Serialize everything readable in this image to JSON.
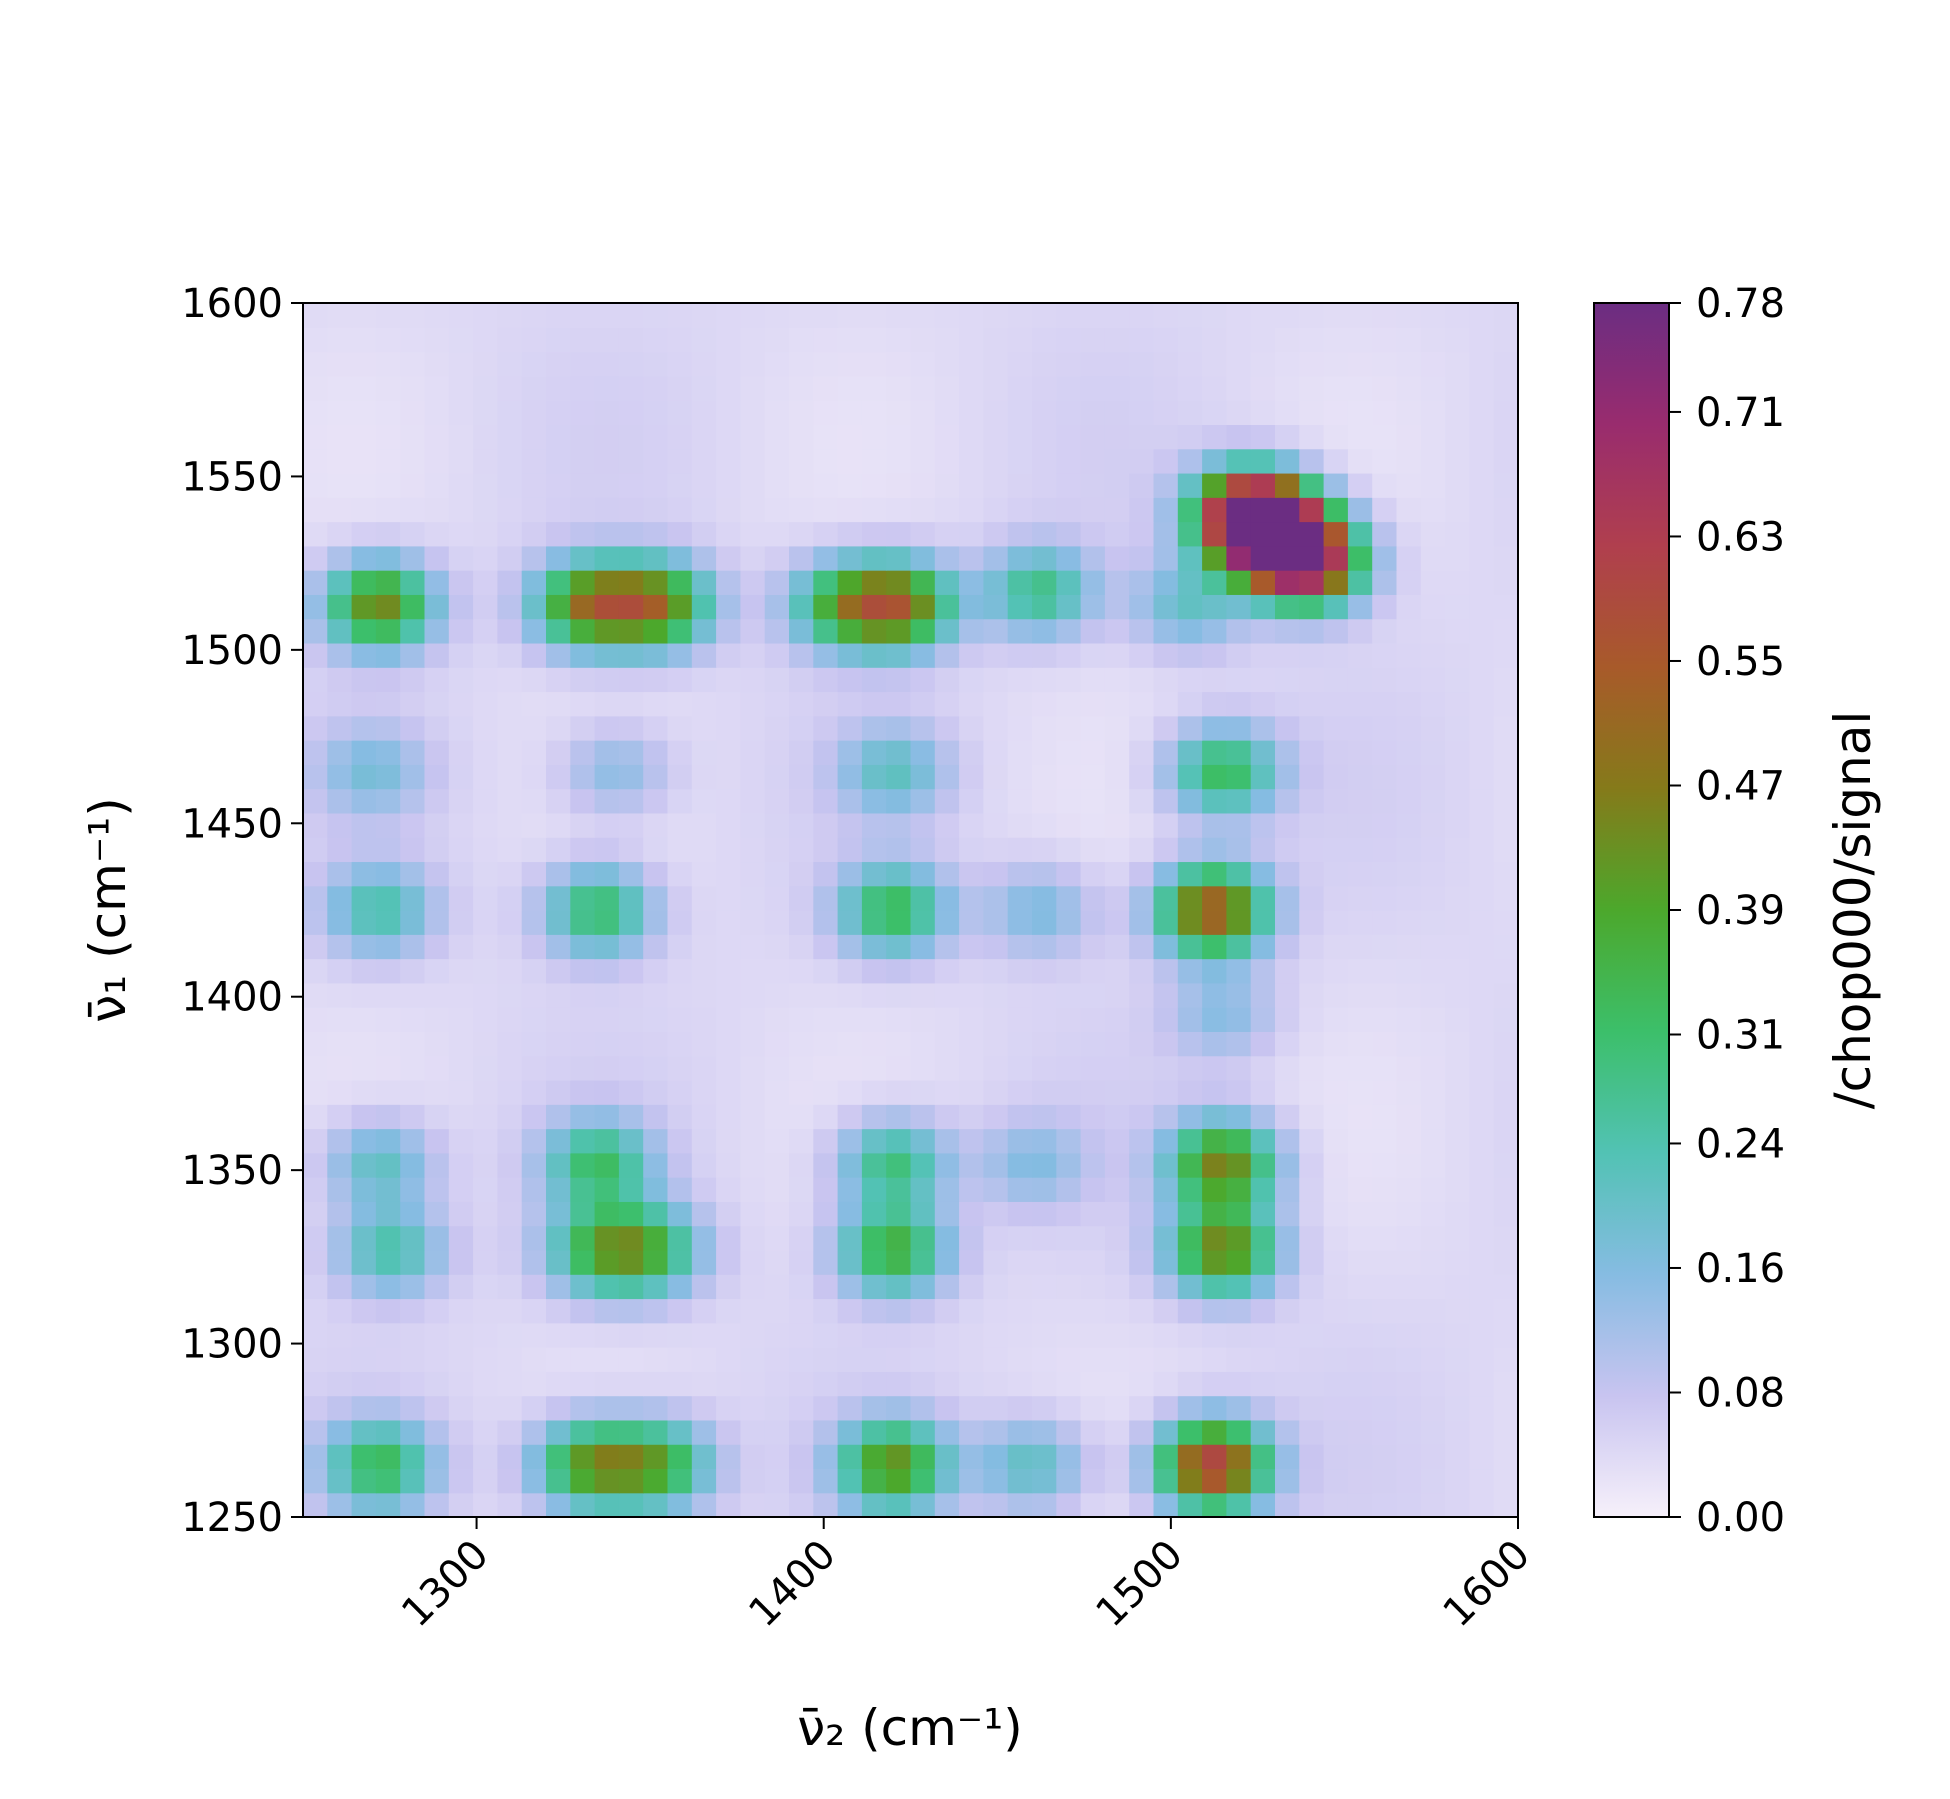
{
  "chart_data": {
    "type": "heatmap",
    "xlabel": "ν̄₂ (cm⁻¹)",
    "ylabel": "ν̄₁ (cm⁻¹)",
    "colorbar_label": "/chop000/signal",
    "xlim": [
      1250,
      1600
    ],
    "ylim": [
      1250,
      1600
    ],
    "zlim": [
      0.0,
      0.78
    ],
    "xticks": [
      "1300",
      "1400",
      "1500",
      "1600"
    ],
    "yticks": [
      "1250",
      "1300",
      "1350",
      "1400",
      "1450",
      "1500",
      "1550",
      "1600"
    ],
    "colorbar_ticks": [
      "0.00",
      "0.08",
      "0.16",
      "0.24",
      "0.31",
      "0.39",
      "0.47",
      "0.55",
      "0.63",
      "0.71",
      "0.78"
    ],
    "grid": false,
    "colormap": [
      "#f6f0fa",
      "#c8c4f0",
      "#86bce2",
      "#52c2b4",
      "#3cbf6a",
      "#4ca82c",
      "#857a1a",
      "#a85a2a",
      "#b03f4e",
      "#992c6e",
      "#6b2d82"
    ],
    "background_level": 0.06,
    "peaks": [
      {
        "nu2": 1272,
        "nu1": 1513,
        "value": 0.45
      },
      {
        "nu2": 1332,
        "nu1": 1513,
        "value": 0.45
      },
      {
        "nu2": 1352,
        "nu1": 1513,
        "value": 0.45
      },
      {
        "nu2": 1405,
        "nu1": 1513,
        "value": 0.33
      },
      {
        "nu2": 1422,
        "nu1": 1513,
        "value": 0.47
      },
      {
        "nu2": 1462,
        "nu1": 1517,
        "value": 0.28
      },
      {
        "nu2": 1505,
        "nu1": 1513,
        "value": 0.2
      },
      {
        "nu2": 1522,
        "nu1": 1540,
        "value": 0.65
      },
      {
        "nu2": 1530,
        "nu1": 1533,
        "value": 0.78
      },
      {
        "nu2": 1540,
        "nu1": 1525,
        "value": 0.6
      },
      {
        "nu2": 1270,
        "nu1": 1465,
        "value": 0.16
      },
      {
        "nu2": 1340,
        "nu1": 1465,
        "value": 0.16
      },
      {
        "nu2": 1420,
        "nu1": 1465,
        "value": 0.2
      },
      {
        "nu2": 1515,
        "nu1": 1465,
        "value": 0.33
      },
      {
        "nu2": 1272,
        "nu1": 1425,
        "value": 0.24
      },
      {
        "nu2": 1335,
        "nu1": 1425,
        "value": 0.32
      },
      {
        "nu2": 1420,
        "nu1": 1425,
        "value": 0.33
      },
      {
        "nu2": 1462,
        "nu1": 1425,
        "value": 0.17
      },
      {
        "nu2": 1512,
        "nu1": 1425,
        "value": 0.55
      },
      {
        "nu2": 1515,
        "nu1": 1395,
        "value": 0.15
      },
      {
        "nu2": 1272,
        "nu1": 1352,
        "value": 0.22
      },
      {
        "nu2": 1335,
        "nu1": 1352,
        "value": 0.3
      },
      {
        "nu2": 1420,
        "nu1": 1352,
        "value": 0.3
      },
      {
        "nu2": 1460,
        "nu1": 1352,
        "value": 0.15
      },
      {
        "nu2": 1515,
        "nu1": 1352,
        "value": 0.45
      },
      {
        "nu2": 1275,
        "nu1": 1327,
        "value": 0.25
      },
      {
        "nu2": 1335,
        "nu1": 1327,
        "value": 0.3
      },
      {
        "nu2": 1350,
        "nu1": 1327,
        "value": 0.3
      },
      {
        "nu2": 1420,
        "nu1": 1327,
        "value": 0.37
      },
      {
        "nu2": 1515,
        "nu1": 1327,
        "value": 0.45
      },
      {
        "nu2": 1272,
        "nu1": 1265,
        "value": 0.32
      },
      {
        "nu2": 1332,
        "nu1": 1265,
        "value": 0.4
      },
      {
        "nu2": 1352,
        "nu1": 1265,
        "value": 0.37
      },
      {
        "nu2": 1420,
        "nu1": 1265,
        "value": 0.42
      },
      {
        "nu2": 1460,
        "nu1": 1265,
        "value": 0.22
      },
      {
        "nu2": 1512,
        "nu1": 1265,
        "value": 0.62
      }
    ]
  }
}
